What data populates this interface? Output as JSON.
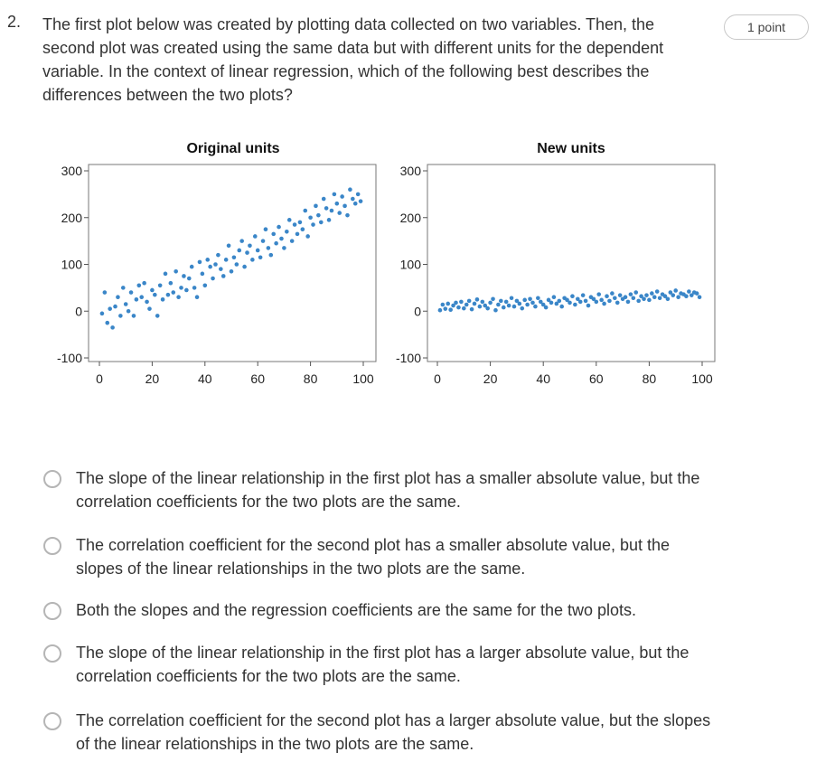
{
  "question": {
    "number": "2.",
    "text": "The first plot below was created by plotting data collected on two variables. Then, the second plot was created using the same data but with different units for the dependent variable. In the context of linear regression, which of the following best describes the differences between the two plots?",
    "points_badge": "1 point"
  },
  "chart_data": [
    {
      "type": "scatter",
      "title": "Original units",
      "xlabel": "",
      "ylabel": "",
      "xlim": [
        0,
        100
      ],
      "ylim": [
        -100,
        300
      ],
      "x_ticks": [
        "0",
        "20",
        "40",
        "60",
        "80",
        "100"
      ],
      "y_ticks": [
        "-100",
        "0",
        "100",
        "200",
        "300"
      ],
      "point_color": "#3a86c8",
      "series": [
        {
          "x": [
            1,
            2,
            3,
            4,
            5,
            6,
            7,
            8,
            9,
            10,
            11,
            12,
            13,
            14,
            15,
            16,
            17,
            18,
            19,
            20,
            21,
            22,
            23,
            24,
            25,
            26,
            27,
            28,
            29,
            30,
            31,
            32,
            33,
            34,
            35,
            36,
            37,
            38,
            39,
            40,
            41,
            42,
            43,
            44,
            45,
            46,
            47,
            48,
            49,
            50,
            51,
            52,
            53,
            54,
            55,
            56,
            57,
            58,
            59,
            60,
            61,
            62,
            63,
            64,
            65,
            66,
            67,
            68,
            69,
            70,
            71,
            72,
            73,
            74,
            75,
            76,
            77,
            78,
            79,
            80,
            81,
            82,
            83,
            84,
            85,
            86,
            87,
            88,
            89,
            90,
            91,
            92,
            93,
            94,
            95,
            96,
            97,
            98,
            99
          ],
          "y": [
            -5,
            40,
            -25,
            5,
            -35,
            10,
            30,
            -10,
            50,
            15,
            0,
            40,
            -10,
            25,
            55,
            30,
            60,
            20,
            5,
            45,
            35,
            -10,
            55,
            25,
            80,
            35,
            60,
            40,
            85,
            30,
            50,
            75,
            45,
            70,
            95,
            50,
            30,
            105,
            80,
            55,
            110,
            95,
            70,
            100,
            120,
            90,
            75,
            110,
            140,
            85,
            115,
            100,
            130,
            150,
            95,
            125,
            140,
            110,
            160,
            130,
            115,
            150,
            175,
            135,
            120,
            165,
            145,
            180,
            155,
            135,
            170,
            195,
            150,
            185,
            165,
            190,
            175,
            215,
            160,
            200,
            185,
            225,
            205,
            190,
            240,
            220,
            195,
            215,
            250,
            230,
            210,
            245,
            225,
            205,
            260,
            240,
            230,
            250,
            235
          ]
        }
      ]
    },
    {
      "type": "scatter",
      "title": "New units",
      "xlabel": "",
      "ylabel": "",
      "xlim": [
        0,
        100
      ],
      "ylim": [
        -100,
        300
      ],
      "x_ticks": [
        "0",
        "20",
        "40",
        "60",
        "80",
        "100"
      ],
      "y_ticks": [
        "-100",
        "0",
        "100",
        "200",
        "300"
      ],
      "point_color": "#3a86c8",
      "series": [
        {
          "x": [
            1,
            2,
            3,
            4,
            5,
            6,
            7,
            8,
            9,
            10,
            11,
            12,
            13,
            14,
            15,
            16,
            17,
            18,
            19,
            20,
            21,
            22,
            23,
            24,
            25,
            26,
            27,
            28,
            29,
            30,
            31,
            32,
            33,
            34,
            35,
            36,
            37,
            38,
            39,
            40,
            41,
            42,
            43,
            44,
            45,
            46,
            47,
            48,
            49,
            50,
            51,
            52,
            53,
            54,
            55,
            56,
            57,
            58,
            59,
            60,
            61,
            62,
            63,
            64,
            65,
            66,
            67,
            68,
            69,
            70,
            71,
            72,
            73,
            74,
            75,
            76,
            77,
            78,
            79,
            80,
            81,
            82,
            83,
            84,
            85,
            86,
            87,
            88,
            89,
            90,
            91,
            92,
            93,
            94,
            95,
            96,
            97,
            98,
            99
          ],
          "y": [
            2,
            14,
            5,
            16,
            3,
            12,
            18,
            8,
            20,
            6,
            14,
            22,
            4,
            16,
            25,
            10,
            20,
            12,
            6,
            18,
            26,
            2,
            14,
            22,
            8,
            20,
            12,
            28,
            10,
            22,
            16,
            6,
            24,
            14,
            26,
            18,
            10,
            28,
            20,
            14,
            8,
            24,
            18,
            30,
            16,
            22,
            10,
            28,
            24,
            18,
            32,
            14,
            26,
            20,
            34,
            22,
            12,
            30,
            26,
            20,
            36,
            24,
            16,
            32,
            22,
            38,
            28,
            18,
            34,
            26,
            30,
            20,
            36,
            28,
            40,
            22,
            32,
            26,
            34,
            24,
            38,
            30,
            42,
            28,
            36,
            32,
            26,
            40,
            34,
            44,
            30,
            38,
            36,
            32,
            42,
            34,
            40,
            38,
            30
          ]
        }
      ]
    }
  ],
  "options": [
    {
      "label": "The slope of the linear relationship in the first plot has a smaller absolute value, but the correlation coefficients for the two plots are the same."
    },
    {
      "label": "The correlation coefficient for the second plot has a smaller absolute value, but the slopes of the linear relationships in the two plots are the same."
    },
    {
      "label": "Both the slopes and the regression coefficients are the same for the two plots."
    },
    {
      "label": "The slope of the linear relationship in the first plot has a larger absolute value, but the correlation coefficients for the two plots are the same."
    },
    {
      "label": "The correlation coefficient for the second plot has a larger absolute value, but the slopes of the linear relationships in the two plots are the same."
    }
  ]
}
